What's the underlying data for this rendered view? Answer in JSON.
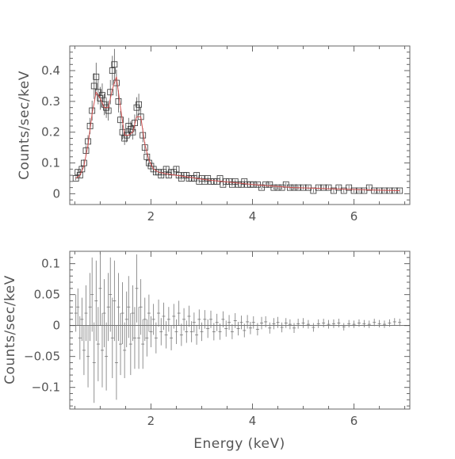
{
  "chart_data": [
    {
      "type": "scatter",
      "panel": "spectrum",
      "ylabel": "Counts/sec/keV",
      "xlabel": "",
      "xlim": [
        0.4,
        7.1
      ],
      "ylim": [
        -0.035,
        0.48
      ],
      "xticks": [
        2,
        4,
        6
      ],
      "xtick_labels": [
        "2",
        "4",
        "6"
      ],
      "yticks": [
        0,
        0.1,
        0.2,
        0.3,
        0.4
      ],
      "ytick_labels": [
        "0",
        "0.1",
        "0.2",
        "0.3",
        "0.4"
      ],
      "colors": {
        "data": "#333333",
        "model": "#d05050"
      },
      "series": [
        {
          "kind": "data",
          "x": [
            0.52,
            0.56,
            0.6,
            0.64,
            0.68,
            0.72,
            0.76,
            0.8,
            0.84,
            0.88,
            0.92,
            0.96,
            1.0,
            1.04,
            1.08,
            1.12,
            1.16,
            1.2,
            1.24,
            1.28,
            1.32,
            1.36,
            1.4,
            1.44,
            1.48,
            1.52,
            1.56,
            1.6,
            1.64,
            1.68,
            1.72,
            1.76,
            1.8,
            1.84,
            1.88,
            1.92,
            1.96,
            2.0,
            2.05,
            2.1,
            2.15,
            2.2,
            2.25,
            2.3,
            2.35,
            2.4,
            2.45,
            2.5,
            2.55,
            2.6,
            2.65,
            2.7,
            2.75,
            2.8,
            2.85,
            2.9,
            2.95,
            3.0,
            3.06,
            3.12,
            3.18,
            3.24,
            3.3,
            3.36,
            3.42,
            3.48,
            3.54,
            3.6,
            3.66,
            3.72,
            3.78,
            3.84,
            3.9,
            3.96,
            4.02,
            4.1,
            4.18,
            4.26,
            4.34,
            4.42,
            4.5,
            4.58,
            4.66,
            4.74,
            4.82,
            4.9,
            5.0,
            5.1,
            5.2,
            5.3,
            5.4,
            5.5,
            5.6,
            5.7,
            5.8,
            5.9,
            6.0,
            6.1,
            6.2,
            6.3,
            6.4,
            6.5,
            6.6,
            6.7,
            6.8,
            6.9
          ],
          "y": [
            0.05,
            0.07,
            0.06,
            0.08,
            0.1,
            0.14,
            0.17,
            0.22,
            0.27,
            0.35,
            0.38,
            0.33,
            0.31,
            0.32,
            0.29,
            0.28,
            0.27,
            0.33,
            0.4,
            0.42,
            0.36,
            0.3,
            0.24,
            0.2,
            0.18,
            0.19,
            0.22,
            0.21,
            0.2,
            0.23,
            0.28,
            0.29,
            0.25,
            0.19,
            0.15,
            0.12,
            0.1,
            0.09,
            0.08,
            0.07,
            0.07,
            0.06,
            0.07,
            0.08,
            0.06,
            0.07,
            0.07,
            0.08,
            0.06,
            0.05,
            0.06,
            0.06,
            0.05,
            0.05,
            0.05,
            0.06,
            0.04,
            0.05,
            0.04,
            0.05,
            0.04,
            0.04,
            0.04,
            0.05,
            0.03,
            0.04,
            0.04,
            0.03,
            0.04,
            0.03,
            0.03,
            0.04,
            0.03,
            0.03,
            0.03,
            0.03,
            0.02,
            0.03,
            0.03,
            0.02,
            0.02,
            0.02,
            0.03,
            0.02,
            0.02,
            0.02,
            0.02,
            0.02,
            0.01,
            0.02,
            0.02,
            0.02,
            0.01,
            0.02,
            0.01,
            0.02,
            0.01,
            0.01,
            0.01,
            0.02,
            0.01,
            0.01,
            0.01,
            0.01,
            0.01,
            0.01
          ]
        },
        {
          "kind": "model",
          "x": [
            0.52,
            0.6,
            0.68,
            0.76,
            0.84,
            0.92,
            1.0,
            1.08,
            1.16,
            1.24,
            1.32,
            1.4,
            1.48,
            1.56,
            1.64,
            1.72,
            1.8,
            1.88,
            1.96,
            2.05,
            2.15,
            2.3,
            2.5,
            2.7,
            2.9,
            3.1,
            3.4,
            3.7,
            4.0,
            4.4,
            4.8,
            5.2,
            5.6,
            6.0,
            6.4,
            6.9
          ],
          "y": [
            0.05,
            0.06,
            0.09,
            0.16,
            0.26,
            0.33,
            0.31,
            0.28,
            0.28,
            0.34,
            0.38,
            0.28,
            0.19,
            0.19,
            0.2,
            0.25,
            0.25,
            0.16,
            0.11,
            0.08,
            0.07,
            0.065,
            0.06,
            0.055,
            0.05,
            0.045,
            0.04,
            0.035,
            0.03,
            0.025,
            0.02,
            0.018,
            0.016,
            0.014,
            0.012,
            0.01
          ]
        }
      ]
    },
    {
      "type": "scatter",
      "panel": "residuals",
      "ylabel": "Counts/sec/keV",
      "xlabel": "Energy (keV)",
      "xlim": [
        0.4,
        7.1
      ],
      "ylim": [
        -0.135,
        0.12
      ],
      "xticks": [
        2,
        4,
        6
      ],
      "xtick_labels": [
        "2",
        "4",
        "6"
      ],
      "yticks": [
        -0.1,
        -0.05,
        0,
        0.05,
        0.1
      ],
      "ytick_labels": [
        "−0.1",
        "−0.05",
        "0",
        "0.05",
        "0.1"
      ],
      "colors": {
        "residual": "#777777",
        "zero": "#444444"
      },
      "series": [
        {
          "kind": "residual",
          "x": [
            0.52,
            0.56,
            0.6,
            0.64,
            0.68,
            0.72,
            0.76,
            0.8,
            0.84,
            0.88,
            0.92,
            0.96,
            1.0,
            1.04,
            1.08,
            1.12,
            1.16,
            1.2,
            1.24,
            1.28,
            1.32,
            1.36,
            1.4,
            1.44,
            1.48,
            1.52,
            1.56,
            1.6,
            1.64,
            1.68,
            1.72,
            1.76,
            1.8,
            1.84,
            1.88,
            1.92,
            1.96,
            2.0,
            2.05,
            2.1,
            2.15,
            2.2,
            2.25,
            2.3,
            2.35,
            2.4,
            2.45,
            2.5,
            2.55,
            2.6,
            2.65,
            2.7,
            2.75,
            2.8,
            2.85,
            2.9,
            2.95,
            3.0,
            3.06,
            3.12,
            3.18,
            3.24,
            3.3,
            3.36,
            3.42,
            3.48,
            3.54,
            3.6,
            3.66,
            3.72,
            3.78,
            3.84,
            3.9,
            3.96,
            4.02,
            4.1,
            4.18,
            4.26,
            4.34,
            4.42,
            4.5,
            4.58,
            4.66,
            4.74,
            4.82,
            4.9,
            5.0,
            5.1,
            5.2,
            5.3,
            5.4,
            5.5,
            5.6,
            5.7,
            5.8,
            5.9,
            6.0,
            6.1,
            6.2,
            6.3,
            6.4,
            6.5,
            6.6,
            6.7,
            6.8,
            6.9
          ],
          "y": [
            0.02,
            0.03,
            -0.02,
            0.01,
            -0.04,
            0.02,
            -0.05,
            0.03,
            0.05,
            -0.06,
            0.04,
            -0.03,
            0.06,
            -0.04,
            0.02,
            -0.05,
            0.03,
            0.05,
            -0.02,
            0.04,
            -0.06,
            0.03,
            -0.03,
            0.02,
            -0.04,
            0.01,
            0.03,
            -0.03,
            0.02,
            -0.02,
            0.06,
            -0.02,
            0.03,
            -0.03,
            0.01,
            -0.02,
            0.02,
            -0.01,
            0.01,
            -0.02,
            0.02,
            -0.01,
            0.015,
            -0.015,
            0.01,
            -0.02,
            0.015,
            -0.01,
            0.02,
            -0.015,
            0.01,
            -0.01,
            0.015,
            -0.01,
            0.005,
            -0.015,
            0.01,
            -0.01,
            0.01,
            -0.005,
            0.01,
            -0.01,
            0.005,
            -0.01,
            0.01,
            -0.005,
            0.005,
            -0.01,
            0.008,
            -0.005,
            0.005,
            -0.008,
            0.006,
            -0.004,
            0.005,
            -0.006,
            0.004,
            0.006,
            -0.004,
            0.003,
            0.005,
            -0.003,
            0.004,
            0.002,
            -0.004,
            0.003,
            0.004,
            0.002,
            -0.003,
            0.003,
            0.004,
            0.002,
            0.003,
            0.004,
            -0.002,
            0.003,
            0.002,
            0.004,
            0.003,
            0.002,
            0.005,
            0.003,
            0.002,
            0.004,
            0.006,
            0.005
          ],
          "err": [
            0.03,
            0.03,
            0.035,
            0.035,
            0.04,
            0.045,
            0.05,
            0.055,
            0.06,
            0.065,
            0.065,
            0.06,
            0.06,
            0.06,
            0.055,
            0.055,
            0.055,
            0.06,
            0.065,
            0.065,
            0.06,
            0.055,
            0.05,
            0.05,
            0.045,
            0.045,
            0.05,
            0.05,
            0.045,
            0.05,
            0.055,
            0.05,
            0.045,
            0.04,
            0.035,
            0.03,
            0.03,
            0.025,
            0.025,
            0.025,
            0.022,
            0.022,
            0.022,
            0.022,
            0.02,
            0.02,
            0.02,
            0.02,
            0.02,
            0.018,
            0.018,
            0.018,
            0.017,
            0.017,
            0.016,
            0.016,
            0.016,
            0.015,
            0.015,
            0.015,
            0.014,
            0.014,
            0.014,
            0.013,
            0.013,
            0.013,
            0.012,
            0.012,
            0.012,
            0.011,
            0.011,
            0.011,
            0.011,
            0.01,
            0.01,
            0.01,
            0.01,
            0.009,
            0.009,
            0.009,
            0.009,
            0.008,
            0.008,
            0.008,
            0.008,
            0.008,
            0.008,
            0.007,
            0.007,
            0.007,
            0.007,
            0.007,
            0.007,
            0.007,
            0.006,
            0.006,
            0.006,
            0.006,
            0.006,
            0.006,
            0.006,
            0.006,
            0.006,
            0.006,
            0.006,
            0.006
          ]
        }
      ]
    }
  ]
}
